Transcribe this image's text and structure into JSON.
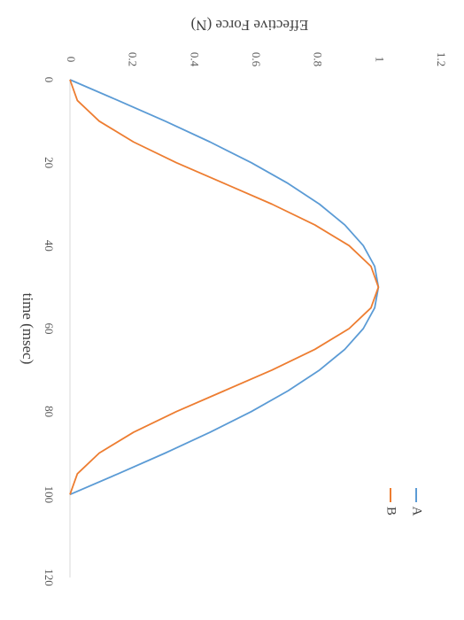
{
  "chart_data": {
    "type": "line",
    "orientation": "rotated-90-clockwise",
    "xlabel": "time (msec)",
    "ylabel": "Effective Force (N)",
    "xlim": [
      0,
      120
    ],
    "ylim": [
      0,
      1.2
    ],
    "x_ticks": [
      "0",
      "20",
      "40",
      "60",
      "80",
      "100",
      "120"
    ],
    "y_ticks": [
      "0",
      "0.2",
      "0.4",
      "0.6",
      "0.8",
      "1",
      "1.2"
    ],
    "grid": false,
    "legend_position": "bottom-right",
    "series": [
      {
        "name": "A",
        "color": "#5b9bd5",
        "x": [
          0,
          5,
          10,
          15,
          20,
          25,
          30,
          35,
          40,
          45,
          50,
          55,
          60,
          65,
          70,
          75,
          80,
          85,
          90,
          95,
          100
        ],
        "y": [
          0,
          0.156,
          0.309,
          0.454,
          0.588,
          0.707,
          0.809,
          0.891,
          0.951,
          0.988,
          1.0,
          0.988,
          0.951,
          0.891,
          0.809,
          0.707,
          0.588,
          0.454,
          0.309,
          0.156,
          0
        ]
      },
      {
        "name": "B",
        "color": "#ed7d31",
        "x": [
          0,
          5,
          10,
          15,
          20,
          25,
          30,
          35,
          40,
          45,
          50,
          55,
          60,
          65,
          70,
          75,
          80,
          85,
          90,
          95,
          100
        ],
        "y": [
          0,
          0.024,
          0.095,
          0.206,
          0.345,
          0.5,
          0.655,
          0.794,
          0.905,
          0.976,
          1.0,
          0.976,
          0.905,
          0.794,
          0.655,
          0.5,
          0.345,
          0.206,
          0.095,
          0.024,
          0
        ]
      }
    ]
  }
}
